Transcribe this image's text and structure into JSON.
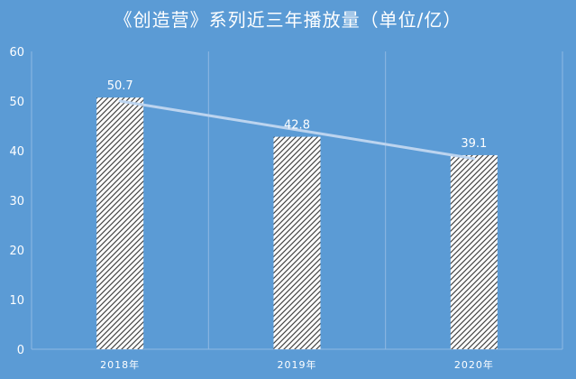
{
  "chart_data": {
    "type": "bar",
    "title": "《创造营》系列近三年播放量（单位/亿）",
    "categories": [
      "2018年",
      "2019年",
      "2020年"
    ],
    "values": [
      50.7,
      42.8,
      39.1
    ],
    "data_labels": [
      "50.7",
      "42.8",
      "39.1"
    ],
    "ylim": [
      0,
      60
    ],
    "yticks": [
      0,
      10,
      20,
      30,
      40,
      50,
      60
    ],
    "trendline": true,
    "grid": "vertical",
    "bar_fill": "diagonal-hatch",
    "colors": {
      "background": "#5b9bd5",
      "bar": "#ffffff",
      "hatch": "#444444",
      "text": "#ffffff",
      "grid": "#8fb8e2",
      "trend": "#bcd4ef"
    }
  }
}
